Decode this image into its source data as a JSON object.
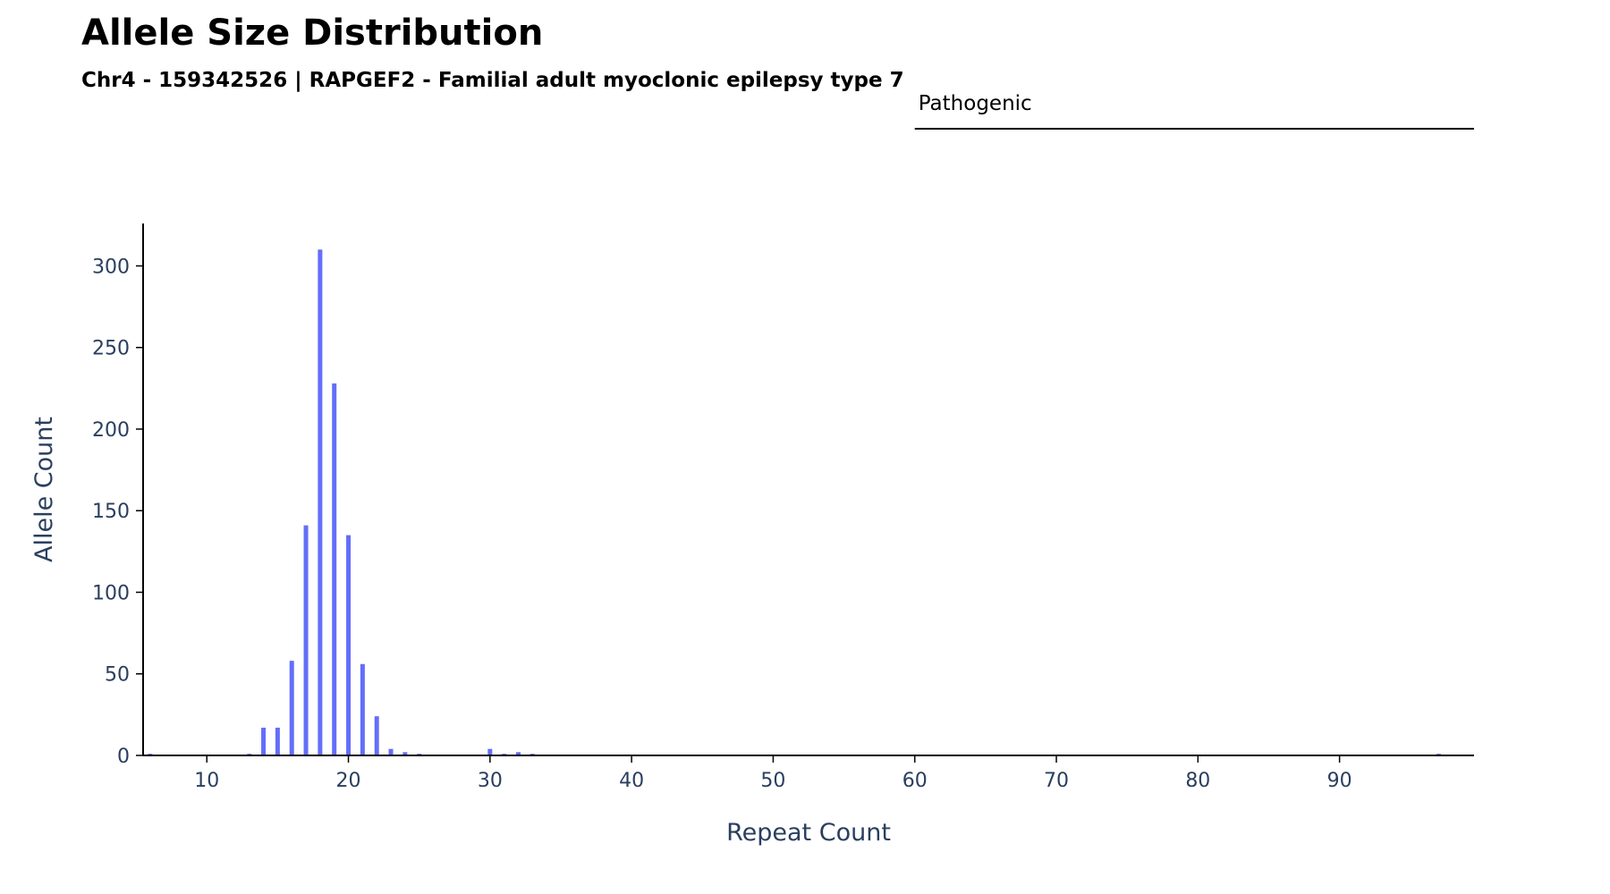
{
  "chart_data": {
    "type": "bar",
    "title": "Allele Size Distribution",
    "subtitle": "Chr4 - 159342526 | RAPGEF2 - Familial adult myoclonic epilepsy type 7",
    "xlabel": "Repeat Count",
    "ylabel": "Allele Count",
    "xlim": [
      5.5,
      99.5
    ],
    "ylim": [
      0,
      326
    ],
    "x_ticks": [
      10,
      20,
      30,
      40,
      50,
      60,
      70,
      80,
      90
    ],
    "y_ticks": [
      0,
      50,
      100,
      150,
      200,
      250,
      300
    ],
    "grid": false,
    "bar_color": "#636efa",
    "series": [
      {
        "x": [
          6,
          13,
          14,
          15,
          16,
          17,
          18,
          19,
          20,
          21,
          22,
          23,
          24,
          25,
          30,
          31,
          32,
          33,
          97
        ],
        "values": [
          1,
          1,
          17,
          17,
          58,
          141,
          310,
          228,
          135,
          56,
          24,
          4,
          2,
          1,
          4,
          1,
          2,
          1,
          1
        ]
      }
    ],
    "annotations": [
      {
        "label": "Pathogenic",
        "x_start": 60,
        "x_end": 99.5
      }
    ]
  }
}
